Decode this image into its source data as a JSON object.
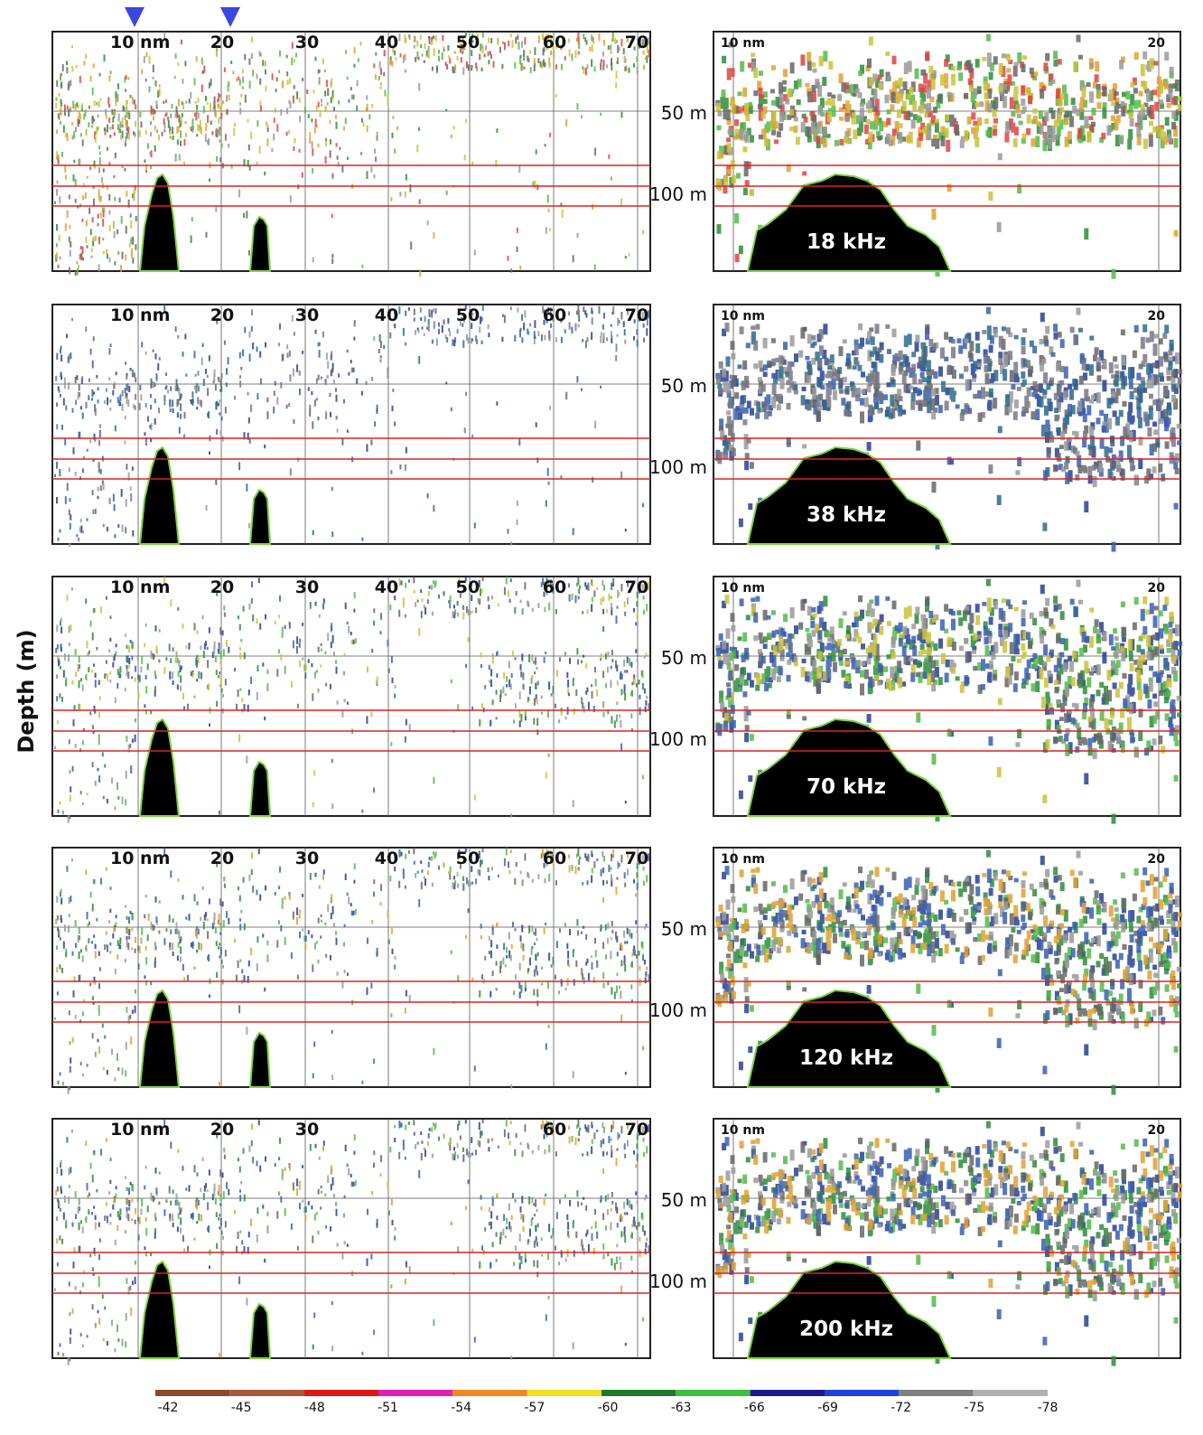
{
  "y_axis_label": "Depth (m)",
  "panels": [
    {
      "frequency": "18 kHz",
      "overview": {
        "distance_labels": [
          "10 nm",
          "20",
          "30",
          "40",
          "50",
          "60",
          "70"
        ],
        "depth_labels": [
          "50 m",
          "100 m"
        ]
      },
      "detail": {
        "distance_labels": [
          "10 nm",
          "20"
        ]
      }
    },
    {
      "frequency": "38 kHz",
      "overview": {
        "distance_labels": [
          "10 nm",
          "20",
          "30",
          "40",
          "50",
          "60",
          "70"
        ],
        "depth_labels": [
          "50 m",
          "100 m"
        ]
      },
      "detail": {
        "distance_labels": [
          "10 nm",
          "20"
        ]
      }
    },
    {
      "frequency": "70 kHz",
      "overview": {
        "distance_labels": [
          "10 nm",
          "20",
          "30",
          "40",
          "50",
          "60",
          "70"
        ],
        "depth_labels": [
          "50 m",
          "100 m"
        ]
      },
      "detail": {
        "distance_labels": [
          "10 nm",
          "20"
        ]
      }
    },
    {
      "frequency": "120 kHz",
      "overview": {
        "distance_labels": [
          "10 nm",
          "20",
          "30",
          "40",
          "50",
          "60",
          "70"
        ],
        "depth_labels": [
          "50 m",
          "100 m"
        ]
      },
      "detail": {
        "distance_labels": [
          "10 nm",
          "20"
        ]
      }
    },
    {
      "frequency": "200 kHz",
      "overview": {
        "distance_labels": [
          "10 nm",
          "20",
          "30",
          null,
          null,
          "60",
          "70"
        ],
        "depth_labels": [
          "50 m",
          "100 m"
        ]
      },
      "detail": {
        "distance_labels": [
          "10 nm",
          "20"
        ]
      }
    }
  ],
  "colorbar": {
    "labels": [
      "-42",
      "-45",
      "-48",
      "-51",
      "-54",
      "-57",
      "-60",
      "-63",
      "-66",
      "-69",
      "-72",
      "-75",
      "-78"
    ]
  }
}
